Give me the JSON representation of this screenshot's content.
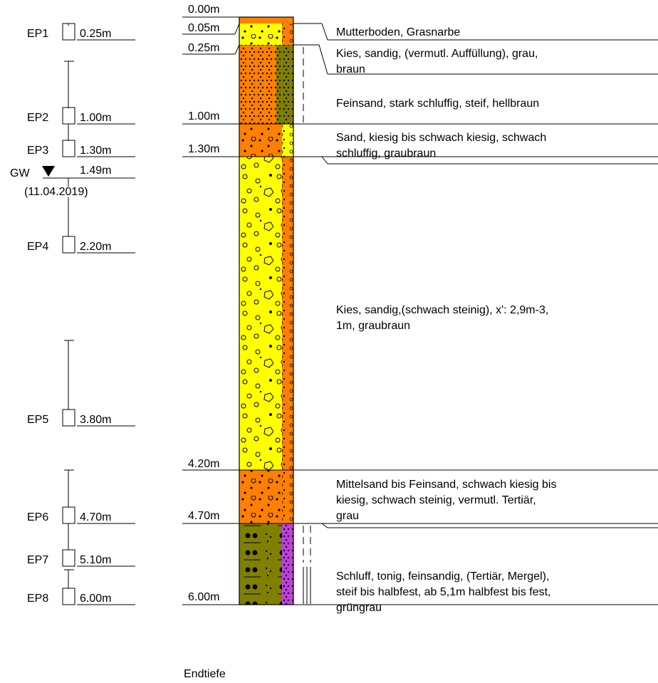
{
  "colors": {
    "fill": "#ffff00",
    "orange": "#ff8000",
    "olive": "#808000",
    "purple": "#c040e0",
    "line": "#000000"
  },
  "samples": [
    {
      "label": "EP1",
      "depth": "0.25m"
    },
    {
      "label": "EP2",
      "depth": "1.00m"
    },
    {
      "label": "EP3",
      "depth": "1.30m"
    },
    {
      "label": "EP4",
      "depth": "2.20m"
    },
    {
      "label": "EP5",
      "depth": "3.80m"
    },
    {
      "label": "EP6",
      "depth": "4.70m"
    },
    {
      "label": "EP7",
      "depth": "5.10m"
    },
    {
      "label": "EP8",
      "depth": "6.00m"
    }
  ],
  "groundwater": {
    "label": "GW",
    "depth": "1.49m",
    "date": "(11.04.2019)"
  },
  "depth_labels": [
    "0.00m",
    "0.05m",
    "0.25m",
    "1.00m",
    "1.30m",
    "4.20m",
    "4.70m",
    "6.00m"
  ],
  "end_label": "Endtiefe",
  "descriptions": [
    [
      "Mutterboden, Grasnarbe"
    ],
    [
      "Kies, sandig, (vermutl. Auffüllung), grau,",
      "braun"
    ],
    [
      "Feinsand, stark schluffig, steif, hellbraun"
    ],
    [
      "Sand, kiesig bis schwach kiesig, schwach",
      "schluffig, graubraun"
    ],
    [
      "Kies, sandig,(schwach steinig), x': 2,9m-3,",
      "1m, graubraun"
    ],
    [
      "Mittelsand bis Feinsand, schwach kiesig bis",
      "kiesig, schwach steinig, vermutl. Tertiär,",
      "grau"
    ],
    [
      "Schluff, tonig, feinsandig, (Tertiär, Mergel),",
      "steif bis halbfest, ab 5,1m halbfest bis fest,",
      "grüngrau"
    ]
  ]
}
